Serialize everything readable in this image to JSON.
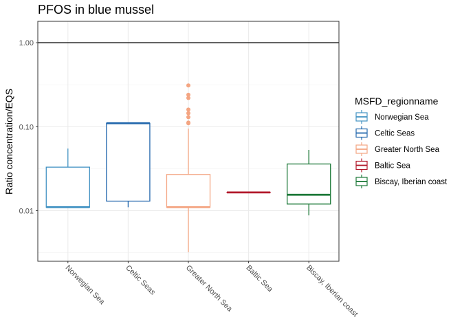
{
  "chart_data": {
    "type": "box",
    "title": "PFOS in blue mussel",
    "xlabel": "",
    "ylabel": "Ratio concentration/EQS",
    "yscale": "log10",
    "ylim": [
      0.0025,
      1.8
    ],
    "yticks": [
      0.01,
      0.1,
      1.0
    ],
    "ytick_labels": [
      "0.01",
      "0.10",
      "1.00"
    ],
    "reference_line": 1.0,
    "grid": true,
    "legend": {
      "title": "MSFD_regionname",
      "position": "right"
    },
    "categories": [
      "Norwegian Sea",
      "Celtic Seas",
      "Greater North Sea",
      "Baltic Sea",
      "Biscay, Iberian coast"
    ],
    "series": [
      {
        "name": "Norwegian Sea",
        "color": "#4393c3",
        "whisker_low": 0.011,
        "q1": 0.011,
        "median": 0.011,
        "q3": 0.033,
        "whisker_high": 0.055,
        "outliers": []
      },
      {
        "name": "Celtic Seas",
        "color": "#2166ac",
        "whisker_low": 0.011,
        "q1": 0.013,
        "median": 0.11,
        "q3": 0.11,
        "whisker_high": 0.11,
        "outliers": []
      },
      {
        "name": "Greater North Sea",
        "color": "#f4a582",
        "whisker_low": 0.0032,
        "q1": 0.011,
        "median": 0.011,
        "q3": 0.027,
        "whisker_high": 0.095,
        "outliers": [
          0.11,
          0.112,
          0.13,
          0.145,
          0.16,
          0.22,
          0.24,
          0.31
        ]
      },
      {
        "name": "Baltic Sea",
        "color": "#b2182b",
        "whisker_low": 0.0165,
        "q1": 0.0165,
        "median": 0.0165,
        "q3": 0.0165,
        "whisker_high": 0.0165,
        "outliers": []
      },
      {
        "name": "Biscay, Iberian coast",
        "color": "#1b7837",
        "whisker_low": 0.0088,
        "q1": 0.012,
        "median": 0.0155,
        "q3": 0.036,
        "whisker_high": 0.053,
        "outliers": []
      }
    ]
  }
}
